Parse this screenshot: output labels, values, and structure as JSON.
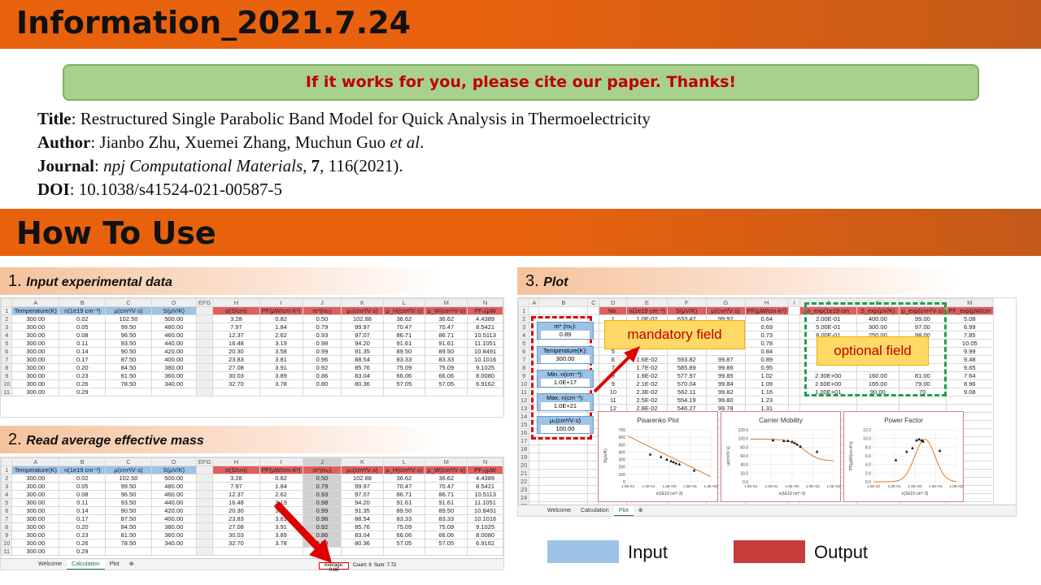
{
  "header": {
    "title": "Information_2021.7.24"
  },
  "cite": "If it works for you, please cite our paper. Thanks!",
  "ref": {
    "title_label": "Title",
    "title": ": Restructured Single Parabolic Band Model for Quick Analysis in Thermoelectricity",
    "author_label": "Author",
    "author": ": Jianbo Zhu, Xuemei Zhang, Muchun Guo ",
    "author_etal": "et al",
    "journal_label": "Journal",
    "journal_name": "npj Computational Materials",
    "journal_vol": "7",
    "journal_rest": ", 116(2021).",
    "doi_label": "DOI",
    "doi": ": 10.1038/s41524-021-00587-5"
  },
  "how": {
    "title": "How To Use"
  },
  "steps": [
    {
      "num": "1.",
      "label": "Input experimental data"
    },
    {
      "num": "2.",
      "label": "Read average effective mass"
    },
    {
      "num": "3.",
      "label": "Plot"
    }
  ],
  "sheet": {
    "left_cols": [
      "",
      "A",
      "B",
      "C",
      "D",
      "EFG"
    ],
    "left_head": [
      "Temperature(K)",
      "n(1e19 cm⁻³)",
      "μ(cm²/V·s)",
      "S(μV/K)"
    ],
    "left_rows": [
      [
        "300.00",
        "0.02",
        "102.50",
        "500.00"
      ],
      [
        "300.00",
        "0.05",
        "99.50",
        "480.00"
      ],
      [
        "300.00",
        "0.08",
        "96.50",
        "460.00"
      ],
      [
        "300.00",
        "0.11",
        "93.50",
        "440.00"
      ],
      [
        "300.00",
        "0.14",
        "90.50",
        "420.00"
      ],
      [
        "300.00",
        "0.17",
        "87.50",
        "400.00"
      ],
      [
        "300.00",
        "0.20",
        "84.50",
        "380.00"
      ],
      [
        "300.00",
        "0.23",
        "81.50",
        "360.00"
      ],
      [
        "300.00",
        "0.26",
        "78.50",
        "340.00"
      ],
      [
        "300.00",
        "0.29",
        "",
        ""
      ]
    ],
    "right_cols": [
      "H",
      "I",
      "J",
      "K",
      "L",
      "M",
      "N"
    ],
    "right_head": [
      "σ(S/cm)",
      "PF(μW/cm·K²)",
      "m*(mₑ)",
      "μ₀(cm²/V·s)",
      "μ_H(cm²/V·s)",
      "μ_W(cm²/V·s)",
      "PF₀(μW"
    ],
    "right_rows": [
      [
        "3.28",
        "0.82",
        "0.50",
        "102.88",
        "36.62",
        "36.62",
        "4.4389"
      ],
      [
        "7.97",
        "1.84",
        "0.79",
        "99.97",
        "70.47",
        "70.47",
        "8.5421"
      ],
      [
        "12.37",
        "2.62",
        "0.93",
        "97.07",
        "86.71",
        "86.71",
        "10.5113"
      ],
      [
        "16.48",
        "3.19",
        "0.98",
        "94.20",
        "91.61",
        "91.61",
        "11.1051"
      ],
      [
        "20.30",
        "3.58",
        "0.99",
        "91.35",
        "89.50",
        "89.50",
        "10.8491"
      ],
      [
        "23.83",
        "3.81",
        "0.96",
        "88.54",
        "83.33",
        "83.33",
        "10.1016"
      ],
      [
        "27.08",
        "3.91",
        "0.92",
        "85.76",
        "75.09",
        "75.09",
        "9.1025"
      ],
      [
        "30.03",
        "3.89",
        "0.86",
        "83.04",
        "66.06",
        "66.06",
        "8.0080"
      ],
      [
        "32.70",
        "3.78",
        "0.80",
        "80.36",
        "57.05",
        "57.05",
        "6.9162"
      ]
    ],
    "tabs": [
      "Welcome",
      "Calculation",
      "Plot",
      "⊕"
    ],
    "status_avg": "Average: 0.86",
    "status_count": "Count: 9",
    "status_sum": "Sum: 7.72"
  },
  "plot": {
    "cols": [
      "A",
      "B",
      "C",
      "D",
      "E",
      "F",
      "G",
      "H",
      "I",
      "J",
      "K",
      "L",
      "M"
    ],
    "head": [
      "No.",
      "n(1e19 cm⁻³)",
      "S(μV/K)",
      "μ(cm²/V·s)",
      "PF(μW/cm·K²)"
    ],
    "rows": [
      [
        "1",
        "1.0E-02",
        "633.47",
        "99.92",
        "0.64"
      ],
      [
        "2",
        "",
        "",
        "",
        "0.69"
      ],
      [
        "3",
        "",
        "",
        "",
        "0.73"
      ],
      [
        "4",
        "",
        "",
        "",
        "0.78"
      ],
      [
        "5",
        "",
        "",
        "",
        "0.84"
      ],
      [
        "6",
        "1.6E-02",
        "593.82",
        "99.87",
        "0.89"
      ],
      [
        "7",
        "1.7E-02",
        "585.89",
        "99.86",
        "0.95"
      ],
      [
        "8",
        "1.9E-02",
        "577.97",
        "99.85",
        "1.02"
      ],
      [
        "9",
        "2.1E-02",
        "570.04",
        "99.84",
        "1.09"
      ],
      [
        "10",
        "2.3E-02",
        "562.11",
        "99.82",
        "1.16"
      ],
      [
        "11",
        "2.5E-02",
        "554.19",
        "99.80",
        "1.23"
      ],
      [
        "12",
        "2.8E-02",
        "546.27",
        "99.78",
        "1.31"
      ]
    ],
    "inputs": [
      {
        "label": "m* (mₑ):",
        "value": "0.89"
      },
      {
        "label": "Temperature(K):",
        "value": "300.00"
      },
      {
        "label": "Min. n(cm⁻³):",
        "value": "1.0E+17"
      },
      {
        "label": "Max. n(cm⁻³):",
        "value": "1.0E+21"
      },
      {
        "label": "μ₀(cm²/V·s)",
        "value": "100.00"
      }
    ],
    "opt_head": [
      "n_exp(1e19 cm",
      "S_exp(μV/K)",
      "μ_exp(cm²/V·s)",
      "PF_exp(μW/cm"
    ],
    "opt_rows": [
      [
        "2.00E-01",
        "400.00",
        "99.00",
        "5.08"
      ],
      [
        "5.00E-01",
        "300.00",
        "97.00",
        "6.99"
      ],
      [
        "8.00E-01",
        "250.00",
        "98.00",
        "7.85"
      ],
      [
        "",
        "",
        "",
        "10.05"
      ],
      [
        "",
        "",
        "",
        "9.99"
      ],
      [
        "",
        "",
        "",
        "9.48"
      ],
      [
        "",
        "",
        "",
        "9.65"
      ],
      [
        "2.30E+00",
        "160.00",
        "81.00",
        "7.64"
      ],
      [
        "2.60E+00",
        "165.00",
        "79.00",
        "8.96"
      ],
      [
        "1.00E+01",
        "90.00",
        "70",
        "9.08"
      ]
    ],
    "mandatory": "mandatory  field",
    "optional": "optional field",
    "charts": [
      {
        "title": "Pisarenko Plot",
        "xlabel": "n(1E19 cm^-3)",
        "ylabel": "S(μV/K)",
        "yticks": [
          "700",
          "600",
          "500",
          "400",
          "300",
          "200",
          "100",
          "0"
        ]
      },
      {
        "title": "Carrier Mobility",
        "xlabel": "n(1E19 cm^-3)",
        "ylabel": "μ(cm²/V·s)",
        "yticks": [
          "120.0",
          "100.0",
          "80.0",
          "60.0",
          "40.0",
          "20.0",
          "0.0"
        ]
      },
      {
        "title": "Power Factor",
        "xlabel": "n(1E19 cm^-3)",
        "ylabel": "PF(μW/(cm·K²))",
        "yticks": [
          "12.0",
          "10.0",
          "8.0",
          "6.0",
          "4.0",
          "2.0",
          "0.0"
        ]
      }
    ],
    "xticks": [
      "1.0E-02",
      "1.0E-01",
      "1.0E+00",
      "1.0E+01",
      "1.0E+02"
    ],
    "tabs": [
      "Welcome",
      "Calculation",
      "Plot",
      "⊕"
    ]
  },
  "legend": {
    "input": "Input",
    "output": "Output",
    "input_color": "#9dc3e6",
    "output_color": "#c93a3a"
  }
}
